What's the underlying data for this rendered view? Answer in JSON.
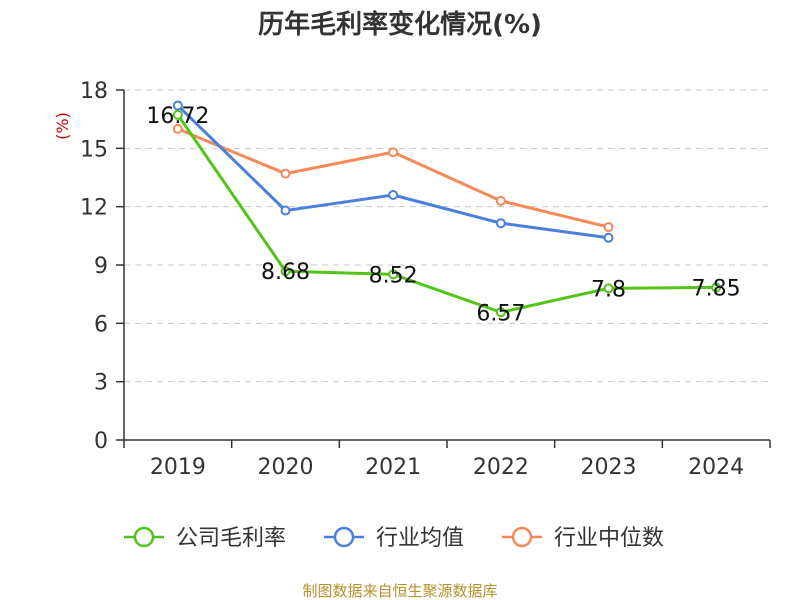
{
  "chart_data": {
    "type": "line",
    "title": "历年毛利率变化情况(%)",
    "ylabel": "(%)",
    "xlabel": "",
    "categories": [
      "2019",
      "2020",
      "2021",
      "2022",
      "2023",
      "2024"
    ],
    "ylim": [
      0,
      18
    ],
    "yticks": [
      0,
      3,
      6,
      9,
      12,
      15,
      18
    ],
    "grid": true,
    "legend_position": "bottom",
    "series": [
      {
        "name": "公司毛利率",
        "color": "#52c41a",
        "values": [
          16.72,
          8.68,
          8.52,
          6.57,
          7.8,
          7.85
        ],
        "labels": [
          "16.72",
          "8.68",
          "8.52",
          "6.57",
          "7.8",
          "7.85"
        ]
      },
      {
        "name": "行业均值",
        "color": "#4a7fdc",
        "values": [
          17.2,
          11.8,
          12.6,
          11.15,
          10.4,
          null
        ]
      },
      {
        "name": "行业中位数",
        "color": "#f5895a",
        "values": [
          16.0,
          13.7,
          14.8,
          12.3,
          10.95,
          null
        ]
      }
    ]
  },
  "source": "制图数据来自恒生聚源数据库"
}
